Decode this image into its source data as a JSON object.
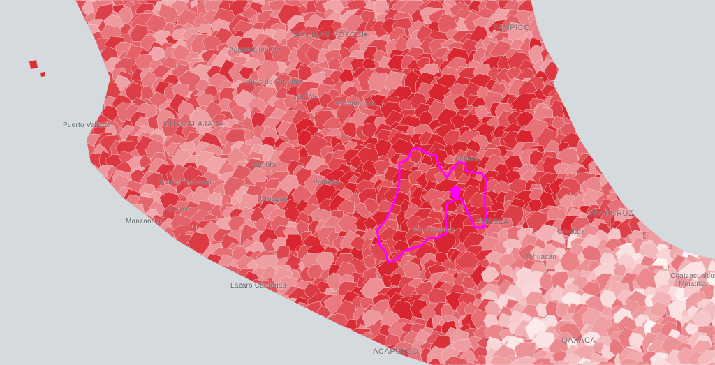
{
  "map": {
    "colors": {
      "water": "#d4dadd",
      "choropleth_low": "#fff6f6",
      "choropleth_high": "#d8252f",
      "highlight_boundary": "#ff00ff",
      "cell_border": "#f4d6d8"
    },
    "highlighted_region": "magenta outlined region around Mexico City",
    "labels": [
      {
        "id": "san-luis-potosi",
        "text": "SAN LUIS POTOSI•"
      },
      {
        "id": "tampico",
        "text": "TAMPICO"
      },
      {
        "id": "aguascalientes",
        "text": "Aguascalientes•"
      },
      {
        "id": "lagos-de-moreno",
        "text": "Lagos de Moreno•"
      },
      {
        "id": "leon",
        "text": "LEÓN•"
      },
      {
        "id": "guanajuato",
        "text": "•Guanajuato"
      },
      {
        "id": "puerto-vallarta",
        "text": "Puerto Vallarta"
      },
      {
        "id": "guadalajara",
        "text": "GUADALAJARA"
      },
      {
        "id": "zamora",
        "text": "Zamora"
      },
      {
        "id": "morelia",
        "text": "•Morelia"
      },
      {
        "id": "ciudad-guzman",
        "text": "Ciudad Guzmán"
      },
      {
        "id": "uruapan",
        "text": "Uruapan"
      },
      {
        "id": "colima",
        "text": "Colima"
      },
      {
        "id": "manzanillo",
        "text": "Manzanillo•"
      },
      {
        "id": "lazaro-cardenas",
        "text": "Lázaro Cárdenas"
      },
      {
        "id": "pachuca",
        "text": "Pachuca"
      },
      {
        "id": "cuernavaca",
        "text": "Cuernavaca•"
      },
      {
        "id": "puebla",
        "text": "PUEBLA"
      },
      {
        "id": "tehuacan",
        "text": "Tehuacán"
      },
      {
        "id": "veracruz",
        "text": "VERACRUZ"
      },
      {
        "id": "cordoba",
        "text": "Córdoba"
      },
      {
        "id": "coatzacoalcos",
        "text": "Coatzacoalcos"
      },
      {
        "id": "minatitlan",
        "text": "Minatitlán"
      },
      {
        "id": "oaxaca",
        "text": "OAXACA"
      },
      {
        "id": "acapulco",
        "text": "ACAPULCO"
      }
    ]
  }
}
